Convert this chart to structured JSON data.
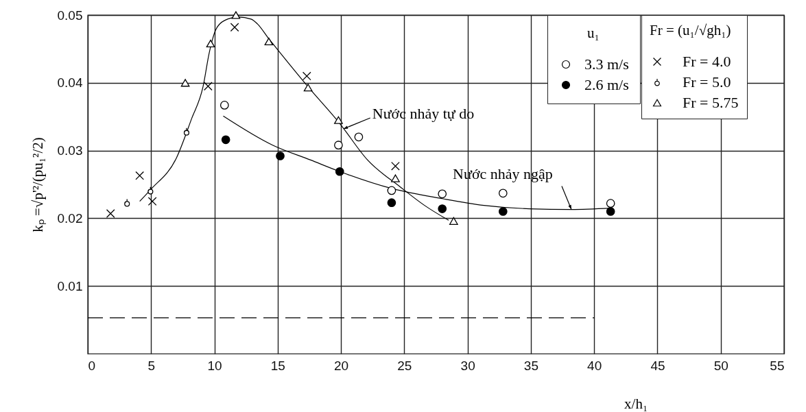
{
  "chart_data": {
    "type": "scatter",
    "xlabel": "x/h₁",
    "ylabel": "kₚ =√p'²/(pu₁²/2)",
    "legend_title": [
      "u₁",
      "Fr = (u₁/√gh₁)"
    ],
    "legend": "top right",
    "grid": true,
    "xlim": [
      0,
      55
    ],
    "xticks": [
      0,
      5,
      10,
      15,
      20,
      25,
      30,
      35,
      40,
      45,
      50,
      55
    ],
    "ylim": [
      0,
      0.05
    ],
    "yticks": [
      0.01,
      0.02,
      0.03,
      0.04,
      0.05
    ],
    "series": [
      {
        "type": "line",
        "color": "#000000",
        "line_style": "solid",
        "x": [
          4.1,
          5.0,
          7.0,
          8.2,
          9.1,
          9.6,
          10.1,
          10.8,
          11.9,
          12.9,
          13.4,
          14.3,
          14.6,
          17.4,
          19.9,
          22.1,
          24.7,
          26.6,
          28.5
        ],
        "values": [
          0.0225,
          0.0243,
          0.0289,
          0.0347,
          0.0394,
          0.0445,
          0.0478,
          0.0492,
          0.0497,
          0.0494,
          0.0487,
          0.0465,
          0.0458,
          0.0394,
          0.034,
          0.0286,
          0.0246,
          0.0219,
          0.0197
        ]
      },
      {
        "type": "line",
        "color": "#000000",
        "line_style": "solid",
        "x": [
          10.7,
          14.6,
          17.6,
          19.9,
          24.0,
          28.0,
          31.3,
          34.9,
          38.2,
          41.3
        ],
        "values": [
          0.0351,
          0.0308,
          0.0286,
          0.0269,
          0.0244,
          0.0229,
          0.0219,
          0.0214,
          0.0213,
          0.0215
        ]
      },
      {
        "type": "line",
        "color": "#000000",
        "line_style": "dashed",
        "x": [
          0,
          40
        ],
        "values": [
          0.0053,
          0.0053
        ]
      },
      {
        "name": "3.3 m/s",
        "marker": "circle",
        "color": "#000000",
        "x": [
          10.8,
          19.8,
          21.4,
          24.0,
          28.0,
          32.8,
          41.3
        ],
        "values": [
          0.0367,
          0.0308,
          0.032,
          0.0241,
          0.0236,
          0.0237,
          0.0222
        ]
      },
      {
        "name": "2.6 m/s",
        "marker": "filled-circle",
        "color": "#000000",
        "x": [
          10.9,
          15.2,
          19.9,
          24.0,
          28.0,
          32.8,
          41.3
        ],
        "values": [
          0.0316,
          0.0292,
          0.0269,
          0.0223,
          0.0214,
          0.021,
          0.021
        ]
      },
      {
        "name": "Fr = 4.0",
        "marker": "cross",
        "color": "#000000",
        "x": [
          1.8,
          4.1,
          5.1,
          9.5,
          11.6,
          17.3,
          24.3
        ],
        "values": [
          0.0207,
          0.0263,
          0.0225,
          0.0395,
          0.0482,
          0.041,
          0.0277
        ]
      },
      {
        "name": "Fr = 5.0",
        "color": "#000000",
        "x": [
          3.1,
          4.95,
          7.8
        ],
        "values": [
          0.0223,
          0.0241,
          0.0328
        ]
      },
      {
        "name": "Fr = 5.75",
        "marker": "triangle",
        "color": "#000000",
        "x": [
          7.7,
          9.7,
          11.7,
          14.3,
          17.4,
          19.8,
          24.3,
          28.9
        ],
        "values": [
          0.04,
          0.0458,
          0.05,
          0.0461,
          0.0393,
          0.0345,
          0.0259,
          0.0196
        ]
      }
    ],
    "annotations": [
      {
        "text": "Nước nhảy tự do",
        "x": 20.2,
        "y": 0.0332
      },
      {
        "text": "Nước nhảy ngập",
        "x": 38.2,
        "y": 0.0213
      }
    ]
  }
}
